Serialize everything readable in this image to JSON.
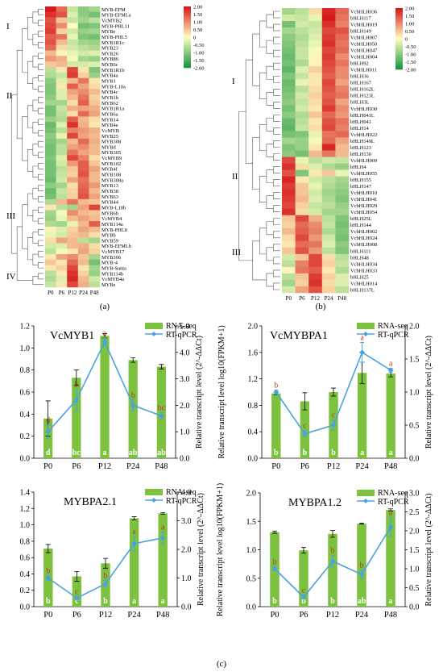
{
  "figure_labels": {
    "a": "(a)",
    "b": "(b)",
    "c": "(c)"
  },
  "heatmap_a": {
    "colorbar_ticks": [
      "2.00",
      "1.50",
      "1.00",
      "0.50",
      "0",
      "-0.50",
      "-1.00",
      "-1.50",
      "-2.00"
    ],
    "columns": [
      "P0",
      "P6",
      "P12",
      "P24",
      "P48"
    ],
    "group_labels": [
      "I",
      "II",
      "III",
      "IV"
    ],
    "rows": [
      "MYB-EFM",
      "MYB-EFMLa",
      "VcMYB2",
      "MYB-PHL11",
      "MYBe",
      "MYB-PHL5",
      "MYB1R1c",
      "MYB23",
      "MYB26",
      "MYB86",
      "MYB6c",
      "MYB1R1b",
      "MYB4a",
      "MYB1",
      "MYB-L10a",
      "MYB4c",
      "MYB1b",
      "MYB62",
      "MYB1R1a",
      "MYB6a",
      "MYB14",
      "MYB4e",
      "VcMYB",
      "MYB25",
      "MYB308",
      "MYBd",
      "MYB305",
      "VcMYB9",
      "MYB102",
      "MYB4f",
      "MYB108",
      "MYB308a",
      "MYB13",
      "MYB38",
      "MYB63",
      "MYB44",
      "MYB-L10b",
      "MYB6b",
      "VcMYB4",
      "MYB114a",
      "MYB-PHL8",
      "MYBb",
      "MYB59",
      "MYB-EFMLb",
      "VcMYB17",
      "MYB306",
      "MYB-4",
      "MYB-Santa",
      "MYB114b",
      "VcMYB4a",
      "MYBe"
    ],
    "values": [
      [
        2,
        1.3,
        -0.5,
        -1,
        -0.8
      ],
      [
        1.8,
        1.5,
        -0.3,
        -1,
        -1.2
      ],
      [
        1.5,
        0.5,
        -0.5,
        -0.8,
        -0.6
      ],
      [
        1.6,
        1,
        0,
        -1.2,
        -1.1
      ],
      [
        1.7,
        0.4,
        -0.4,
        -0.9,
        -0.8
      ],
      [
        1.4,
        1.2,
        -0.2,
        -1.1,
        -1.2
      ],
      [
        1.5,
        0.6,
        -0.5,
        -0.8,
        -0.9
      ],
      [
        1.3,
        0.3,
        -0.4,
        -0.6,
        -0.7
      ],
      [
        0.6,
        0.1,
        -0.2,
        -0.4,
        -0.3
      ],
      [
        0.9,
        0.7,
        -0.1,
        -0.8,
        -0.9
      ],
      [
        0.5,
        0.6,
        -0.4,
        -0.4,
        -0.3
      ],
      [
        -0.6,
        0.2,
        1.6,
        0.2,
        -1.1
      ],
      [
        -0.7,
        -0.5,
        1.7,
        0.4,
        -0.9
      ],
      [
        -1,
        -0.3,
        0.6,
        1.2,
        0.2
      ],
      [
        -1.1,
        0.2,
        1.4,
        0.8,
        0.3
      ],
      [
        -1.1,
        -0.3,
        0.8,
        1,
        0.6
      ],
      [
        -1,
        -0.3,
        0.6,
        1.2,
        0.4
      ],
      [
        -0.8,
        -0.8,
        0.3,
        1.4,
        0.5
      ],
      [
        -1.2,
        -0.5,
        0.7,
        0.8,
        0.7
      ],
      [
        -1.2,
        -0.6,
        0.3,
        1.3,
        0.8
      ],
      [
        -0.9,
        -0.7,
        1.4,
        0.6,
        0.3
      ],
      [
        -1.3,
        -0.3,
        1.8,
        0.7,
        0.2
      ],
      [
        -1.2,
        -0.6,
        1.1,
        0.9,
        0.7
      ],
      [
        -1,
        -0.2,
        1.6,
        0.8,
        0.6
      ],
      [
        -1.1,
        -0.8,
        0.6,
        1.3,
        0.7
      ],
      [
        -1.2,
        -0.6,
        0.8,
        1,
        0.6
      ],
      [
        -1.2,
        -0.6,
        1.2,
        0.8,
        0.6
      ],
      [
        -1.1,
        -0.3,
        1.6,
        1.1,
        0.3
      ],
      [
        -1.2,
        -0.4,
        0.9,
        1.4,
        0.5
      ],
      [
        -1.2,
        -0.6,
        0.5,
        1.4,
        0.8
      ],
      [
        -1.2,
        -0.5,
        0.4,
        1.5,
        0.6
      ],
      [
        -1.3,
        -0.4,
        0.8,
        1.2,
        0.6
      ],
      [
        -1,
        -0.8,
        0.3,
        1.3,
        0.9
      ],
      [
        -1.3,
        -0.5,
        0.4,
        1.4,
        0.6
      ],
      [
        -1.2,
        -0.6,
        0.4,
        1.5,
        0.8
      ],
      [
        -0.7,
        0.6,
        1.2,
        0.6,
        0.5
      ],
      [
        0.2,
        -0.6,
        -0.8,
        0.8,
        1.6
      ],
      [
        -0.8,
        -0.1,
        1,
        0.6,
        0.5
      ],
      [
        -0.9,
        -0.2,
        0.6,
        0.8,
        0.6
      ],
      [
        -0.7,
        -0.8,
        -0.2,
        0.6,
        1.4
      ],
      [
        0.1,
        -0.3,
        0.4,
        0.8,
        0.6
      ],
      [
        -0.2,
        -0.4,
        0.5,
        0.6,
        0.3
      ],
      [
        0.3,
        0.8,
        0.6,
        -0.6,
        -0.8
      ],
      [
        -0.4,
        -0.3,
        0.6,
        0.7,
        0.3
      ],
      [
        -0.6,
        -0.1,
        0.2,
        0.8,
        0.4
      ],
      [
        0.2,
        0.8,
        1,
        0.5,
        -0.8
      ],
      [
        0.5,
        0.2,
        1.3,
        0.6,
        -1.2
      ],
      [
        0.2,
        0.4,
        1.6,
        0.2,
        -0.8
      ],
      [
        -0.6,
        0.2,
        1.8,
        0.4,
        -0.9
      ],
      [
        -0.7,
        -0.3,
        1.9,
        0.6,
        -0.4
      ],
      [
        -0.5,
        0.2,
        1.6,
        0.7,
        -0.6
      ]
    ]
  },
  "heatmap_b": {
    "colorbar_ticks": [
      "2.00",
      "1.50",
      "1.00",
      "0.50",
      "0",
      "-0.50",
      "-1.00",
      "-1.50",
      "-2.00"
    ],
    "columns": [
      "P0",
      "P6",
      "P12",
      "P24",
      "P48"
    ],
    "group_labels": [
      "I",
      "II",
      "III"
    ],
    "rows": [
      "VcbHLH036",
      "bHLH117",
      "VcbHLH019",
      "bHLH149",
      "VcbHLH007",
      "VcbHLH050",
      "VcbHLH047",
      "VcbHLH004",
      "bHLH92",
      "VcbHLH011",
      "bHLH36",
      "bHLH167",
      "bHLH162L",
      "bHLH123L",
      "bHLH3L",
      "VcbHLH030",
      "bHLH041L",
      "bHLH041",
      "bHLH14",
      "VcbHLH022",
      "bHLH149L",
      "bHLH123",
      "bHLH130",
      "VcbHLH009",
      "bHLH4",
      "VcbHLH055",
      "bHLH155",
      "bHLH147",
      "VcbHLH010",
      "VcbHLH041",
      "VcbHLH029",
      "VcbHLH054",
      "bHLH25L",
      "bHLH144",
      "VcbHLH002",
      "VcbHLH024",
      "VcbHLH008",
      "bHLH111",
      "bHLH48",
      "VcbHLH034",
      "VcbHLH033",
      "bHLH25",
      "VcbHLH014",
      "bHLH137L"
    ],
    "values": [
      [
        -0.8,
        -0.6,
        0.3,
        1.9,
        1.3
      ],
      [
        -0.4,
        -0.5,
        -0.2,
        2,
        1.2
      ],
      [
        -1.2,
        -0.4,
        -0.5,
        1.8,
        1.1
      ],
      [
        -0.8,
        -0.6,
        -0.4,
        1.6,
        1.5
      ],
      [
        -1,
        -0.7,
        -0.3,
        1.7,
        1.3
      ],
      [
        -1.1,
        -0.6,
        -0.2,
        1.8,
        1.2
      ],
      [
        -1.2,
        -0.5,
        -0.1,
        1.6,
        1.3
      ],
      [
        -1.3,
        -0.5,
        0.1,
        1.7,
        1
      ],
      [
        -1.2,
        -0.7,
        0.1,
        1.6,
        1.2
      ],
      [
        -1.4,
        -0.3,
        0.4,
        1.5,
        1
      ],
      [
        -1.1,
        -0.5,
        0.2,
        1.4,
        1
      ],
      [
        -1.3,
        -0.2,
        0.2,
        1.6,
        0.8
      ],
      [
        -1.2,
        -0.6,
        0.3,
        1.5,
        1.1
      ],
      [
        -1.1,
        -0.4,
        0.4,
        1.4,
        1.2
      ],
      [
        -1,
        -0.5,
        0.3,
        1.5,
        0.8
      ],
      [
        -1.2,
        -0.4,
        0.2,
        1.7,
        1
      ],
      [
        -1,
        -0.7,
        0.5,
        1.3,
        0.9
      ],
      [
        -1.3,
        -0.6,
        0.2,
        1.5,
        1.2
      ],
      [
        -1.4,
        -0.5,
        0.3,
        1.6,
        1.1
      ],
      [
        -1.2,
        -1.1,
        -0.2,
        1.2,
        1.3
      ],
      [
        -0.8,
        -0.9,
        -0.1,
        1.3,
        0.8
      ],
      [
        -1.1,
        -0.9,
        0.2,
        1.9,
        0.6
      ],
      [
        -1,
        -1.2,
        0.6,
        1.2,
        0.6
      ],
      [
        1.6,
        -0.2,
        -0.6,
        -0.4,
        -0.5
      ],
      [
        1.8,
        0.3,
        -0.3,
        -0.7,
        -0.9
      ],
      [
        1.5,
        -1.1,
        0.2,
        0.5,
        -0.2
      ],
      [
        1.9,
        0.2,
        -0.4,
        -0.6,
        -0.8
      ],
      [
        1.7,
        0.5,
        -0.2,
        -0.7,
        -0.9
      ],
      [
        1.8,
        0.5,
        -0.4,
        -0.8,
        -1
      ],
      [
        1.7,
        0.6,
        -0.3,
        -0.7,
        -1.1
      ],
      [
        1.6,
        0.4,
        -0.5,
        -0.6,
        -0.9
      ],
      [
        1.8,
        0.3,
        -0.4,
        -0.8,
        -0.8
      ],
      [
        0.5,
        1.6,
        0.7,
        -0.6,
        -1.1
      ],
      [
        0.4,
        1.3,
        1,
        -0.5,
        -1.2
      ],
      [
        0.6,
        1.4,
        1.1,
        -0.7,
        -1.1
      ],
      [
        0.3,
        1.6,
        0.9,
        -0.4,
        -1.2
      ],
      [
        0.2,
        1.3,
        1.2,
        -0.3,
        -1
      ],
      [
        0.5,
        1.5,
        0.9,
        -0.6,
        -1.1
      ],
      [
        -0.4,
        0.5,
        1.6,
        0.3,
        -0.6
      ],
      [
        -0.6,
        1.1,
        1.6,
        0.4,
        -0.5
      ],
      [
        0.1,
        1.2,
        1.4,
        0.2,
        -0.7
      ],
      [
        -0.6,
        0.5,
        1.7,
        0.4,
        -0.3
      ],
      [
        -0.8,
        0.4,
        1.8,
        0.3,
        -0.3
      ],
      [
        -0.4,
        0.8,
        1.5,
        0.4,
        -0.6
      ]
    ]
  },
  "chart_data": [
    {
      "type": "bar",
      "title": "VcMYB1",
      "categories": [
        "P0",
        "P6",
        "P12",
        "P24",
        "P48"
      ],
      "ylabel": "Relative transcript level log10(FPKM+1)",
      "ylabel_right": "Relative transcript level (2^-ΔΔCt)",
      "ylim": [
        0,
        1.2
      ],
      "ylim_right": [
        0,
        5
      ],
      "yticks": [
        "0.0",
        "0.2",
        "0.4",
        "0.6",
        "0.8",
        "1.0",
        "1.2"
      ],
      "yticks_right": [
        "0.0",
        "1.0",
        "2.0",
        "3.0",
        "4.0",
        "5.0"
      ],
      "series": [
        {
          "name": "RNA-seq",
          "values": [
            0.36,
            0.73,
            1.11,
            0.89,
            0.83
          ],
          "errors": [
            0.16,
            0.07,
            0.02,
            0.02,
            0.02
          ],
          "letters": [
            "d",
            "bc",
            "a",
            "ab",
            "ab"
          ]
        },
        {
          "name": "RT-qPCR",
          "values": [
            1.0,
            2.2,
            4.4,
            2.0,
            1.6
          ],
          "errors": [
            0.25,
            0.4,
            0.15,
            0.2,
            0.12
          ],
          "letters": [
            "d",
            "b",
            "a",
            "b",
            "bc"
          ]
        }
      ]
    },
    {
      "type": "bar",
      "title": "VcMYBPA1",
      "categories": [
        "P0",
        "P6",
        "P12",
        "P24",
        "P48"
      ],
      "ylabel": "Relative transcript level log10(FPKM+1)",
      "ylabel_right": "Relative transcript level (2^-ΔΔCt)",
      "ylim": [
        0,
        2.0
      ],
      "ylim_right": [
        0,
        2.0
      ],
      "yticks": [
        "0.0",
        "0.4",
        "0.8",
        "1.2",
        "1.6",
        "2.0"
      ],
      "yticks_right": [
        "0.0",
        "0.5",
        "1.0",
        "1.5",
        "2.0"
      ],
      "series": [
        {
          "name": "RNA-seq",
          "values": [
            0.98,
            0.86,
            1.0,
            1.29,
            1.28
          ],
          "errors": [
            0.02,
            0.13,
            0.06,
            0.16,
            0.05
          ],
          "letters": [
            "b",
            "b",
            "b",
            "a",
            "a"
          ]
        },
        {
          "name": "RT-qPCR",
          "values": [
            1.0,
            0.37,
            0.5,
            1.6,
            1.33
          ],
          "errors": [
            0.03,
            0.05,
            0.08,
            0.15,
            0.03
          ],
          "letters": [
            "b",
            "c",
            "c",
            "a",
            "a"
          ]
        }
      ]
    },
    {
      "type": "bar",
      "title": "MYBPA2.1",
      "categories": [
        "P0",
        "P6",
        "P12",
        "P24",
        "P48"
      ],
      "ylabel": "Relative transcript level log10(FPKM+1)",
      "ylabel_right": "Relative transcript level (2^-ΔΔCt)",
      "ylim": [
        0,
        1.4
      ],
      "ylim_right": [
        0,
        4.0
      ],
      "yticks": [
        "0.0",
        "0.2",
        "0.4",
        "0.6",
        "0.8",
        "1.0",
        "1.2",
        "1.4"
      ],
      "yticks_right": [
        "0.0",
        "1.0",
        "2.0",
        "3.0",
        "4.0"
      ],
      "series": [
        {
          "name": "RNA-seq",
          "values": [
            0.71,
            0.37,
            0.53,
            1.08,
            1.14
          ],
          "errors": [
            0.05,
            0.06,
            0.06,
            0.02,
            0.01
          ],
          "letters": [
            "b",
            "c",
            "b",
            "a",
            "a"
          ]
        },
        {
          "name": "RT-qPCR",
          "values": [
            1.0,
            0.3,
            0.8,
            2.2,
            2.4
          ],
          "errors": [
            0.08,
            0.05,
            0.12,
            0.25,
            0.2
          ],
          "letters": [
            "b",
            "c",
            "b",
            "a",
            "a"
          ]
        }
      ]
    },
    {
      "type": "bar",
      "title": "MYBPA1.2",
      "categories": [
        "P0",
        "P6",
        "P12",
        "P24",
        "P48"
      ],
      "ylabel": "Relative transcript level log10(FPKM+1)",
      "ylabel_right": "Relative transcript level (2^-ΔΔCt)",
      "ylim": [
        0,
        2.0
      ],
      "ylim_right": [
        0,
        3.0
      ],
      "yticks": [
        "0.0",
        "0.5",
        "1.0",
        "1.5",
        "2.0"
      ],
      "yticks_right": [
        "0.0",
        "0.5",
        "1.0",
        "1.5",
        "2.0",
        "2.5",
        "3.0"
      ],
      "series": [
        {
          "name": "RNA-seq",
          "values": [
            1.31,
            0.99,
            1.28,
            1.46,
            1.7
          ],
          "errors": [
            0.02,
            0.05,
            0.06,
            0.01,
            0.02
          ],
          "letters": [
            "b",
            "b",
            "b",
            "ab",
            "a"
          ]
        },
        {
          "name": "RT-qPCR",
          "values": [
            1.0,
            0.25,
            1.2,
            0.85,
            2.1
          ],
          "errors": [
            0.05,
            0.05,
            0.15,
            0.12,
            0.25
          ],
          "letters": [
            "b",
            "c",
            "b",
            "b",
            "a"
          ]
        }
      ]
    }
  ],
  "colors": {
    "bar": "#7dc23f",
    "line": "#4aa3df",
    "errbar": "#000000",
    "letter_bar": "#ffffff",
    "letter_line": "#c0392b",
    "heat_hi": "#d7191c",
    "heat_mid": "#ffffbf",
    "heat_lo": "#1a9641"
  }
}
